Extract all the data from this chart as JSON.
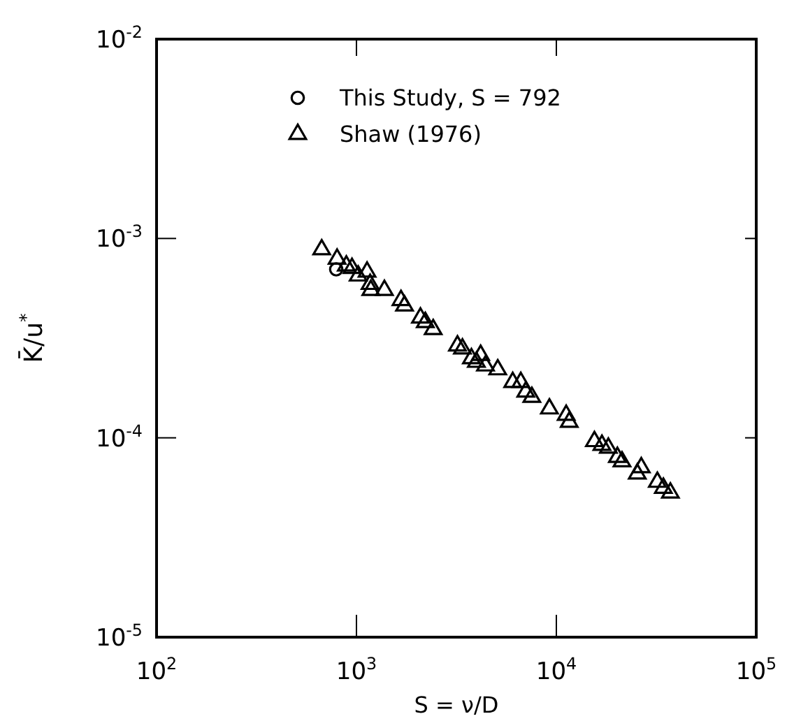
{
  "chart_data": {
    "type": "scatter",
    "xlabel": "S = ν/D",
    "ylabel": "K̄/u$^{*}$",
    "log": "xy",
    "grid": false,
    "legend": "top",
    "tick_labels": "xy",
    "xlim": [
      100,
      100000
    ],
    "ylim": [
      1e-05,
      0.01
    ],
    "xticks": [
      {
        "value": 100,
        "label": "10$^{2}$"
      },
      {
        "value": 1000,
        "label": "10$^{3}$"
      },
      {
        "value": 10000,
        "label": "10$^{4}$"
      },
      {
        "value": 100000,
        "label": "10$^{5}$"
      }
    ],
    "yticks": [
      {
        "value": 1e-05,
        "label": "10$^{-5}$"
      },
      {
        "value": 0.0001,
        "label": "10$^{-4}$"
      },
      {
        "value": 0.001,
        "label": "10$^{-3}$"
      },
      {
        "value": 0.01,
        "label": "10$^{-2}$"
      }
    ],
    "series": [
      {
        "name": "This Study, S = 792",
        "color": "#000000",
        "marker": "circle",
        "x": [
          792
        ],
        "values": [
          0.0007
        ]
      },
      {
        "name": "Shaw (1976)",
        "color": "#000000",
        "marker": "triangle",
        "x": [
          670,
          800,
          890,
          950,
          1020,
          1130,
          1170,
          1180,
          1380,
          1670,
          1740,
          2090,
          2210,
          2420,
          3200,
          3390,
          3760,
          3980,
          4180,
          4420,
          5090,
          6050,
          6640,
          7030,
          7540,
          9230,
          11200,
          11600,
          15500,
          16900,
          18200,
          20200,
          21300,
          25400,
          26600,
          32000,
          34300,
          37200
        ],
        "values": [
          0.00088,
          0.00079,
          0.00073,
          0.00071,
          0.00065,
          0.00068,
          0.00059,
          0.00055,
          0.00055,
          0.00049,
          0.00046,
          0.0004,
          0.00038,
          0.00035,
          0.00029,
          0.00028,
          0.00025,
          0.00024,
          0.00026,
          0.00023,
          0.00022,
          0.00019,
          0.00019,
          0.00017,
          0.00016,
          0.00014,
          0.00013,
          0.00012,
          9.6e-05,
          9.2e-05,
          8.9e-05,
          8e-05,
          7.6e-05,
          6.6e-05,
          7.1e-05,
          6e-05,
          5.6e-05,
          5.3e-05
        ]
      }
    ]
  }
}
